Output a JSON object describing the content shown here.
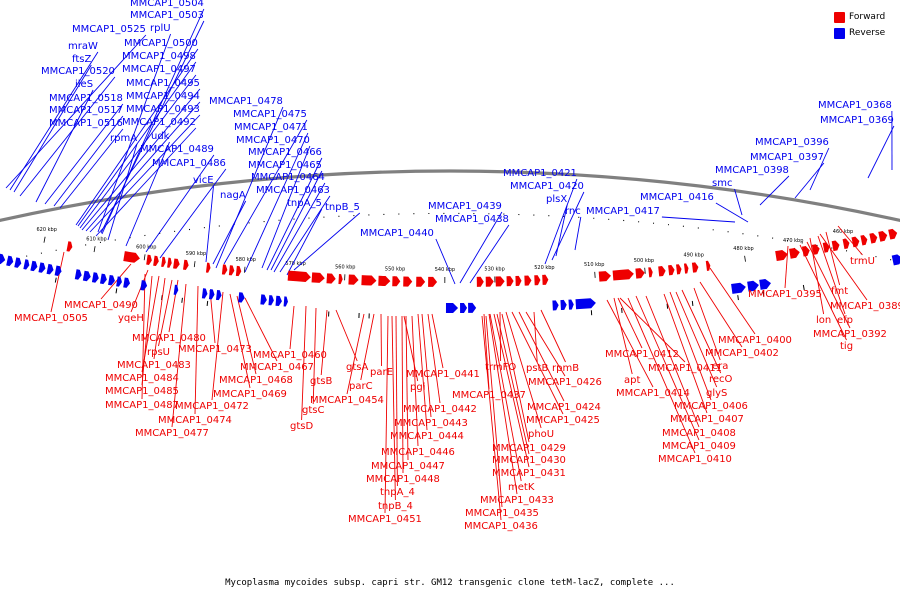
{
  "caption": "Mycoplasma mycoides subsp. capri str. GM12 transgenic clone tetM-lacZ, complete ...",
  "legend": [
    {
      "label": "Forward",
      "color": "#ee0000"
    },
    {
      "label": "Reverse",
      "color": "#0000ee"
    }
  ],
  "colors": {
    "forward": "#ee0000",
    "reverse": "#0000ee",
    "backbone": "#808080",
    "ticks": "#000000"
  },
  "scale": {
    "ticks": [
      "460 kbp",
      "470 kbp",
      "480 kbp",
      "490 kbp",
      "500 kbp",
      "510 kbp",
      "520 kbp",
      "530 kbp",
      "540 kbp",
      "550 kbp",
      "560 kbp",
      "570 kbp",
      "580 kbp",
      "590 kbp",
      "600 kbp",
      "610 kbp",
      "620 kbp"
    ]
  },
  "reverse_labels": [
    "MMCAP1_0368",
    "MMCAP1_0369",
    "MMCAP1_0396",
    "MMCAP1_0397",
    "MMCAP1_0398",
    "smc",
    "MMCAP1_0416",
    "MMCAP1_0417",
    "rnc",
    "plsX",
    "MMCAP1_0420",
    "MMCAP1_0421",
    "MMCAP1_0438",
    "MMCAP1_0439",
    "MMCAP1_0440",
    "tnpB_5",
    "tnpA_5",
    "MMCAP1_0463",
    "MMCAP1_0464",
    "MMCAP1_0465",
    "MMCAP1_0466",
    "MMCAP1_0470",
    "MMCAP1_0471",
    "MMCAP1_0475",
    "MMCAP1_0478",
    "nagA",
    "vicE",
    "MMCAP1_0486",
    "MMCAP1_0489",
    "udk",
    "rpmA",
    "MMCAP1_0492",
    "MMCAP1_0493",
    "MMCAP1_0494",
    "MMCAP1_0495",
    "MMCAP1_0497",
    "MMCAP1_0498",
    "MMCAP1_0500",
    "rplU",
    "MMCAP1_0503",
    "MMCAP1_0504",
    "MMCAP1_0525",
    "mraW",
    "ftsZ",
    "MMCAP1_0520",
    "ileS",
    "MMCAP1_0518",
    "MMCAP1_0517",
    "MMCAP1_0516"
  ],
  "forward_labels": [
    "trmU",
    "fmt",
    "MMCAP1_0389",
    "efp",
    "lon",
    "MMCAP1_0392",
    "tig",
    "MMCAP1_0395",
    "MMCAP1_0400",
    "MMCAP1_0402",
    "era",
    "recO",
    "glyS",
    "MMCAP1_0406",
    "MMCAP1_0407",
    "MMCAP1_0408",
    "MMCAP1_0409",
    "MMCAP1_0410",
    "MMCAP1_0411",
    "MMCAP1_0412",
    "apt",
    "MMCAP1_0414",
    "rpmB",
    "pstB",
    "MMCAP1_0426",
    "MMCAP1_0424",
    "MMCAP1_0425",
    "trmFO",
    "phoU",
    "MMCAP1_0429",
    "MMCAP1_0430",
    "MMCAP1_0431",
    "metK",
    "MMCAP1_0433",
    "MMCAP1_0435",
    "MMCAP1_0436",
    "MMCAP1_0437",
    "MMCAP1_0441",
    "MMCAP1_0442",
    "MMCAP1_0443",
    "MMCAP1_0444",
    "MMCAP1_0446",
    "MMCAP1_0447",
    "MMCAP1_0448",
    "tnpA_4",
    "tnpB_4",
    "MMCAP1_0451",
    "pgi",
    "parE",
    "parC",
    "MMCAP1_0454",
    "gtsA",
    "gtsB",
    "gtsC",
    "gtsD",
    "MMCAP1_0460",
    "MMCAP1_0467",
    "MMCAP1_0468",
    "MMCAP1_0469",
    "MMCAP1_0472",
    "MMCAP1_0473",
    "MMCAP1_0474",
    "MMCAP1_0477",
    "MMCAP1_0480",
    "rpsU",
    "MMCAP1_0483",
    "MMCAP1_0484",
    "MMCAP1_0485",
    "MMCAP1_0487",
    "yqeH",
    "MMCAP1_0490",
    "MMCAP1_0505"
  ]
}
